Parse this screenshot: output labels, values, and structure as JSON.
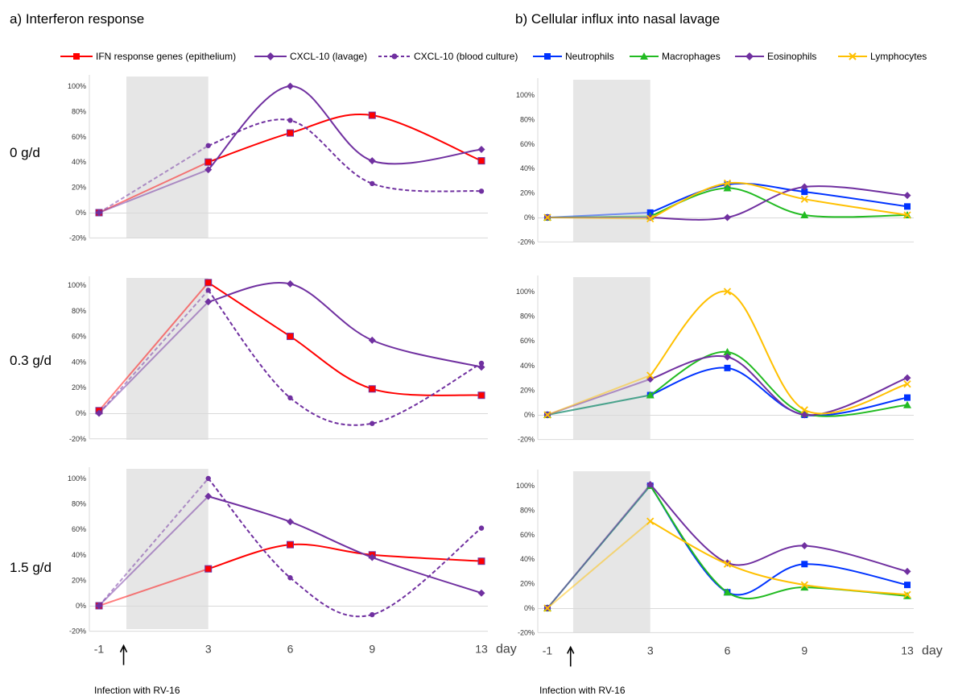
{
  "section_titles": {
    "left": "a) Interferon response",
    "right": "b) Cellular influx into nasal lavage"
  },
  "dose_labels": [
    "0 g/d",
    "0.3 g/d",
    "1.5 g/d"
  ],
  "infection_note": "Infection with RV-16",
  "day_unit": "day",
  "colors": {
    "ifn": "#FF0000",
    "cxcl_lavage": "#7030A0",
    "cxcl_blood": "#7030A0",
    "neutrophils": "#0033FF",
    "macrophages": "#22BB22",
    "eosinophils": "#7030A0",
    "lymphocytes": "#FFC000",
    "shade": "#E6E6E6",
    "axis": "#D9D9D9"
  },
  "chart_data": [
    {
      "id": "a-0",
      "panel": "a",
      "dose": "0 g/d",
      "type": "line",
      "x": [
        -1,
        3,
        6,
        9,
        13
      ],
      "xtick_labels": [
        "-1",
        "3",
        "6",
        "9",
        "13"
      ],
      "ytick_labels": [
        "100%",
        "80%",
        "60%",
        "40%",
        "20%",
        "0%",
        "-20%"
      ],
      "ylim": [
        -20,
        110
      ],
      "shaded_x": [
        0,
        3
      ],
      "series": [
        {
          "name": "IFN response genes (epithelium)",
          "key": "ifn",
          "marker": "square",
          "dash": false,
          "values": [
            0,
            40,
            63,
            77,
            41
          ]
        },
        {
          "name": "CXCL-10 (lavage)",
          "key": "cxcl_lavage",
          "marker": "diamond",
          "dash": false,
          "values": [
            0,
            34,
            100,
            41,
            50
          ]
        },
        {
          "name": "CXCL-10 (blood culture)",
          "key": "cxcl_blood",
          "marker": "dot",
          "dash": true,
          "values": [
            0,
            53,
            73,
            23,
            17
          ]
        }
      ]
    },
    {
      "id": "a-03",
      "panel": "a",
      "dose": "0.3 g/d",
      "type": "line",
      "x": [
        -1,
        3,
        6,
        9,
        13
      ],
      "xtick_labels": [
        "-1",
        "3",
        "6",
        "9",
        "13"
      ],
      "ytick_labels": [
        "100%",
        "80%",
        "60%",
        "40%",
        "20%",
        "0%",
        "-20%"
      ],
      "ylim": [
        -20,
        110
      ],
      "shaded_x": [
        0,
        3
      ],
      "series": [
        {
          "name": "IFN response genes (epithelium)",
          "key": "ifn",
          "marker": "square",
          "dash": false,
          "values": [
            2,
            102,
            60,
            19,
            14
          ]
        },
        {
          "name": "CXCL-10 (lavage)",
          "key": "cxcl_lavage",
          "marker": "diamond",
          "dash": false,
          "values": [
            0,
            87,
            101,
            57,
            36
          ]
        },
        {
          "name": "CXCL-10 (blood culture)",
          "key": "cxcl_blood",
          "marker": "dot",
          "dash": true,
          "values": [
            0,
            96,
            12,
            -8,
            39
          ]
        }
      ]
    },
    {
      "id": "a-15",
      "panel": "a",
      "dose": "1.5 g/d",
      "type": "line",
      "x": [
        -1,
        3,
        6,
        9,
        13
      ],
      "xtick_labels": [
        "-1",
        "3",
        "6",
        "9",
        "13"
      ],
      "ytick_labels": [
        "100%",
        "80%",
        "60%",
        "40%",
        "20%",
        "0%",
        "-20%"
      ],
      "ylim": [
        -20,
        110
      ],
      "shaded_x": [
        0,
        3
      ],
      "series": [
        {
          "name": "IFN response genes (epithelium)",
          "key": "ifn",
          "marker": "square",
          "dash": false,
          "values": [
            0,
            29,
            48,
            40,
            35
          ]
        },
        {
          "name": "CXCL-10 (lavage)",
          "key": "cxcl_lavage",
          "marker": "diamond",
          "dash": false,
          "values": [
            0,
            86,
            66,
            38,
            10
          ]
        },
        {
          "name": "CXCL-10 (blood culture)",
          "key": "cxcl_blood",
          "marker": "dot",
          "dash": true,
          "values": [
            0,
            100,
            22,
            -7,
            61
          ]
        }
      ]
    },
    {
      "id": "b-0",
      "panel": "b",
      "dose": "0 g/d",
      "type": "line",
      "x": [
        -1,
        3,
        6,
        9,
        13
      ],
      "xtick_labels": [
        "-1",
        "3",
        "6",
        "9",
        "13"
      ],
      "ytick_labels": [
        "100%",
        "80%",
        "60%",
        "40%",
        "20%",
        "0%",
        "-20%"
      ],
      "ylim": [
        -20,
        110
      ],
      "shaded_x": [
        0,
        3
      ],
      "series": [
        {
          "name": "Neutrophils",
          "key": "neutrophils",
          "marker": "square",
          "dash": false,
          "values": [
            0,
            4,
            27,
            21,
            9
          ]
        },
        {
          "name": "Macrophages",
          "key": "macrophages",
          "marker": "triangle",
          "dash": false,
          "values": [
            0,
            1,
            24,
            2,
            2
          ]
        },
        {
          "name": "Eosinophils",
          "key": "eosinophils",
          "marker": "diamond",
          "dash": false,
          "values": [
            0,
            0,
            0,
            25,
            18
          ]
        },
        {
          "name": "Lymphocytes",
          "key": "lymphocytes",
          "marker": "x",
          "dash": false,
          "values": [
            0,
            -1,
            28,
            15,
            2
          ]
        }
      ]
    },
    {
      "id": "b-03",
      "panel": "b",
      "dose": "0.3 g/d",
      "type": "line",
      "x": [
        -1,
        3,
        6,
        9,
        13
      ],
      "xtick_labels": [
        "-1",
        "3",
        "6",
        "9",
        "13"
      ],
      "ytick_labels": [
        "100%",
        "80%",
        "60%",
        "40%",
        "20%",
        "0%",
        "-20%"
      ],
      "ylim": [
        -20,
        110
      ],
      "shaded_x": [
        0,
        3
      ],
      "series": [
        {
          "name": "Neutrophils",
          "key": "neutrophils",
          "marker": "square",
          "dash": false,
          "values": [
            0,
            16,
            38,
            0,
            14
          ]
        },
        {
          "name": "Macrophages",
          "key": "macrophages",
          "marker": "triangle",
          "dash": false,
          "values": [
            0,
            16,
            51,
            1,
            8
          ]
        },
        {
          "name": "Eosinophils",
          "key": "eosinophils",
          "marker": "diamond",
          "dash": false,
          "values": [
            0,
            29,
            47,
            0,
            30
          ]
        },
        {
          "name": "Lymphocytes",
          "key": "lymphocytes",
          "marker": "x",
          "dash": false,
          "values": [
            0,
            32,
            100,
            4,
            25
          ]
        }
      ]
    },
    {
      "id": "b-15",
      "panel": "b",
      "dose": "1.5 g/d",
      "type": "line",
      "x": [
        -1,
        3,
        6,
        9,
        13
      ],
      "xtick_labels": [
        "-1",
        "3",
        "6",
        "9",
        "13"
      ],
      "ytick_labels": [
        "100%",
        "80%",
        "60%",
        "40%",
        "20%",
        "0%",
        "-20%"
      ],
      "ylim": [
        -20,
        110
      ],
      "shaded_x": [
        0,
        3
      ],
      "series": [
        {
          "name": "Neutrophils",
          "key": "neutrophils",
          "marker": "square",
          "dash": false,
          "values": [
            0,
            100,
            13,
            36,
            19
          ]
        },
        {
          "name": "Macrophages",
          "key": "macrophages",
          "marker": "triangle",
          "dash": false,
          "values": [
            0,
            100,
            13,
            17,
            10
          ]
        },
        {
          "name": "Eosinophils",
          "key": "eosinophils",
          "marker": "diamond",
          "dash": false,
          "values": [
            0,
            101,
            37,
            51,
            30
          ]
        },
        {
          "name": "Lymphocytes",
          "key": "lymphocytes",
          "marker": "x",
          "dash": false,
          "values": [
            0,
            71,
            36,
            19,
            11
          ]
        }
      ]
    }
  ]
}
